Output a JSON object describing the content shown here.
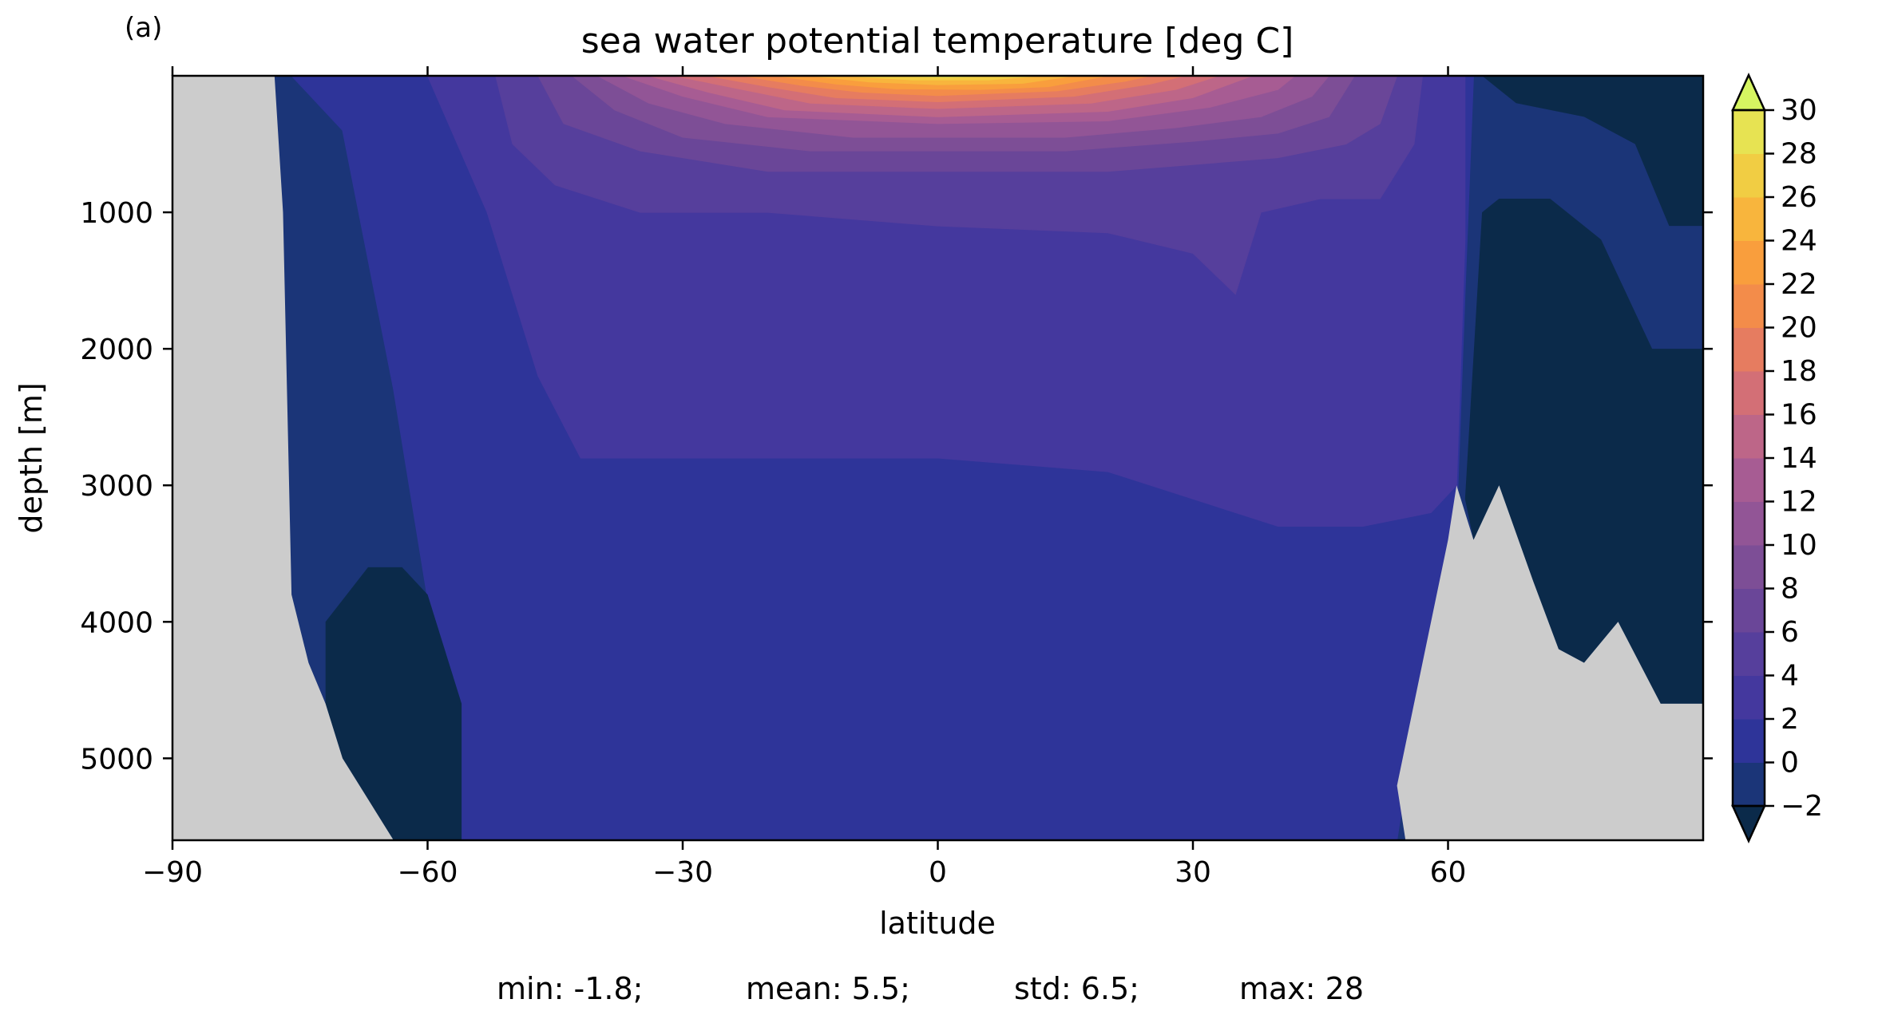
{
  "panel_label": "(a)",
  "title": "sea water potential temperature [deg C]",
  "stats": {
    "min": "min: -1.8;",
    "mean": "mean: 5.5;",
    "std": "std: 6.5;",
    "max": "max: 28"
  },
  "colors": {
    "land": "#cccccc",
    "levels": [
      "#0b2a4a",
      "#1b3578",
      "#2e3499",
      "#44389e",
      "#563f9c",
      "#6a4698",
      "#7d4e96",
      "#925596",
      "#a75c93",
      "#bd6688",
      "#d36f76",
      "#e67c60",
      "#f38c4a",
      "#f99e3d",
      "#f8b53d",
      "#f1cd43",
      "#e7e352",
      "#d6f561"
    ]
  },
  "chart_data": {
    "type": "heatmap",
    "title": "sea water potential temperature [deg C]",
    "xlabel": "latitude",
    "ylabel": "depth [m]",
    "xlim": [
      -90,
      90
    ],
    "ylim": [
      5600,
      0
    ],
    "y_inverted": true,
    "x_ticks": [
      -90,
      -60,
      -30,
      0,
      30,
      60
    ],
    "x_tick_labels": [
      "−90",
      "−60",
      "−30",
      "0",
      "30",
      "60"
    ],
    "y_ticks": [
      1000,
      2000,
      3000,
      4000,
      5000
    ],
    "y_tick_labels": [
      "1000",
      "2000",
      "3000",
      "4000",
      "5000"
    ],
    "colorbar": {
      "levels": [
        -2,
        0,
        2,
        4,
        6,
        8,
        10,
        12,
        14,
        16,
        18,
        20,
        22,
        24,
        26,
        28,
        30
      ],
      "tick_labels": [
        "−2",
        "0",
        "2",
        "4",
        "6",
        "8",
        "10",
        "12",
        "14",
        "16",
        "18",
        "20",
        "22",
        "24",
        "26",
        "28",
        "30"
      ],
      "extend": "both",
      "units": "deg C"
    },
    "statistics": {
      "min": -1.8,
      "mean": 5.5,
      "std": 6.5,
      "max": 28
    },
    "bottom_depth": [
      [
        -90,
        0
      ],
      [
        -78,
        0
      ],
      [
        -77,
        1000
      ],
      [
        -76,
        3800
      ],
      [
        -74,
        4300
      ],
      [
        -72,
        4600
      ],
      [
        -70,
        5000
      ],
      [
        -67,
        5300
      ],
      [
        -64,
        5600
      ],
      [
        55,
        5600
      ],
      [
        54,
        5200
      ],
      [
        57,
        4300
      ],
      [
        60,
        3400
      ],
      [
        61,
        3000
      ],
      [
        63,
        3400
      ],
      [
        66,
        3000
      ],
      [
        70,
        3700
      ],
      [
        73,
        4200
      ],
      [
        76,
        4300
      ],
      [
        80,
        4000
      ],
      [
        85,
        4600
      ],
      [
        90,
        4600
      ]
    ],
    "contours_top_depth": [
      {
        "value": 0,
        "points": [
          [
            -76,
            0
          ],
          [
            -70,
            400
          ],
          [
            -64,
            2300
          ],
          [
            -58,
            4600
          ],
          [
            -56,
            5600
          ],
          [
            54,
            5600
          ],
          [
            57,
            4400
          ],
          [
            61,
            3300
          ],
          [
            62,
            1600
          ],
          [
            63,
            0
          ]
        ]
      },
      {
        "value": 2,
        "points": [
          [
            -60,
            0
          ],
          [
            -53,
            1000
          ],
          [
            -47,
            2200
          ],
          [
            -42,
            2800
          ],
          [
            -30,
            2800
          ],
          [
            0,
            2800
          ],
          [
            20,
            2900
          ],
          [
            30,
            3100
          ],
          [
            40,
            3300
          ],
          [
            50,
            3300
          ],
          [
            58,
            3200
          ],
          [
            61,
            3000
          ],
          [
            62,
            1200
          ],
          [
            62,
            0
          ]
        ]
      },
      {
        "value": 4,
        "points": [
          [
            -52,
            0
          ],
          [
            -50,
            500
          ],
          [
            -45,
            800
          ],
          [
            -35,
            1000
          ],
          [
            -20,
            1000
          ],
          [
            0,
            1100
          ],
          [
            20,
            1150
          ],
          [
            30,
            1300
          ],
          [
            35,
            1600
          ],
          [
            38,
            1000
          ],
          [
            45,
            900
          ],
          [
            52,
            900
          ],
          [
            56,
            500
          ],
          [
            57,
            0
          ]
        ]
      },
      {
        "value": 6,
        "points": [
          [
            -47,
            0
          ],
          [
            -44,
            350
          ],
          [
            -35,
            550
          ],
          [
            -20,
            700
          ],
          [
            0,
            700
          ],
          [
            20,
            700
          ],
          [
            30,
            650
          ],
          [
            40,
            600
          ],
          [
            48,
            500
          ],
          [
            52,
            350
          ],
          [
            54,
            0
          ]
        ]
      },
      {
        "value": 8,
        "points": [
          [
            -43,
            0
          ],
          [
            -38,
            250
          ],
          [
            -30,
            450
          ],
          [
            -15,
            550
          ],
          [
            0,
            550
          ],
          [
            15,
            550
          ],
          [
            30,
            480
          ],
          [
            40,
            420
          ],
          [
            46,
            300
          ],
          [
            49,
            0
          ]
        ]
      },
      {
        "value": 10,
        "points": [
          [
            -40,
            0
          ],
          [
            -34,
            200
          ],
          [
            -25,
            350
          ],
          [
            -10,
            450
          ],
          [
            0,
            450
          ],
          [
            15,
            450
          ],
          [
            28,
            380
          ],
          [
            38,
            300
          ],
          [
            44,
            150
          ],
          [
            46,
            0
          ]
        ]
      },
      {
        "value": 12,
        "points": [
          [
            -37,
            0
          ],
          [
            -30,
            150
          ],
          [
            -20,
            300
          ],
          [
            0,
            350
          ],
          [
            20,
            330
          ],
          [
            32,
            230
          ],
          [
            40,
            100
          ],
          [
            42,
            0
          ]
        ]
      },
      {
        "value": 14,
        "points": [
          [
            -34,
            0
          ],
          [
            -27,
            120
          ],
          [
            -18,
            250
          ],
          [
            0,
            300
          ],
          [
            20,
            260
          ],
          [
            30,
            160
          ],
          [
            37,
            0
          ]
        ]
      },
      {
        "value": 16,
        "points": [
          [
            -31,
            0
          ],
          [
            -23,
            100
          ],
          [
            -15,
            200
          ],
          [
            0,
            240
          ],
          [
            18,
            200
          ],
          [
            28,
            100
          ],
          [
            33,
            0
          ]
        ]
      },
      {
        "value": 18,
        "points": [
          [
            -27,
            0
          ],
          [
            -20,
            80
          ],
          [
            -12,
            160
          ],
          [
            0,
            190
          ],
          [
            16,
            150
          ],
          [
            25,
            60
          ],
          [
            29,
            0
          ]
        ]
      },
      {
        "value": 20,
        "points": [
          [
            -23,
            0
          ],
          [
            -16,
            70
          ],
          [
            -9,
            120
          ],
          [
            0,
            145
          ],
          [
            14,
            110
          ],
          [
            22,
            40
          ],
          [
            25,
            0
          ]
        ]
      },
      {
        "value": 22,
        "points": [
          [
            -19,
            0
          ],
          [
            -12,
            60
          ],
          [
            -5,
            95
          ],
          [
            5,
            100
          ],
          [
            13,
            80
          ],
          [
            20,
            0
          ]
        ]
      },
      {
        "value": 24,
        "points": [
          [
            -15,
            0
          ],
          [
            -8,
            45
          ],
          [
            0,
            65
          ],
          [
            10,
            55
          ],
          [
            16,
            0
          ]
        ]
      },
      {
        "value": 26,
        "points": [
          [
            -11,
            0
          ],
          [
            -3,
            30
          ],
          [
            6,
            30
          ],
          [
            12,
            0
          ]
        ]
      },
      {
        "value": 28,
        "points": [
          [
            -6,
            0
          ],
          [
            1,
            12
          ],
          [
            7,
            0
          ]
        ]
      }
    ],
    "cold_pockets_below_0": [
      {
        "points": [
          [
            -72,
            4000
          ],
          [
            -67,
            3600
          ],
          [
            -63,
            3600
          ],
          [
            -60,
            3800
          ],
          [
            -56,
            4600
          ],
          [
            -56,
            5600
          ],
          [
            -64,
            5600
          ],
          [
            -67,
            5300
          ],
          [
            -70,
            5000
          ],
          [
            -72,
            4600
          ]
        ]
      },
      {
        "points": [
          [
            62,
            3100
          ],
          [
            64,
            1000
          ],
          [
            66,
            900
          ],
          [
            72,
            900
          ],
          [
            78,
            1200
          ],
          [
            84,
            2000
          ],
          [
            90,
            2000
          ],
          [
            90,
            4600
          ],
          [
            85,
            4600
          ],
          [
            80,
            4000
          ],
          [
            76,
            4300
          ],
          [
            73,
            4200
          ],
          [
            70,
            3700
          ],
          [
            66,
            3000
          ],
          [
            63,
            3400
          ]
        ]
      },
      {
        "points": [
          [
            64,
            0
          ],
          [
            90,
            0
          ],
          [
            90,
            1100
          ],
          [
            86,
            1100
          ],
          [
            82,
            500
          ],
          [
            76,
            300
          ],
          [
            68,
            200
          ]
        ]
      }
    ]
  }
}
